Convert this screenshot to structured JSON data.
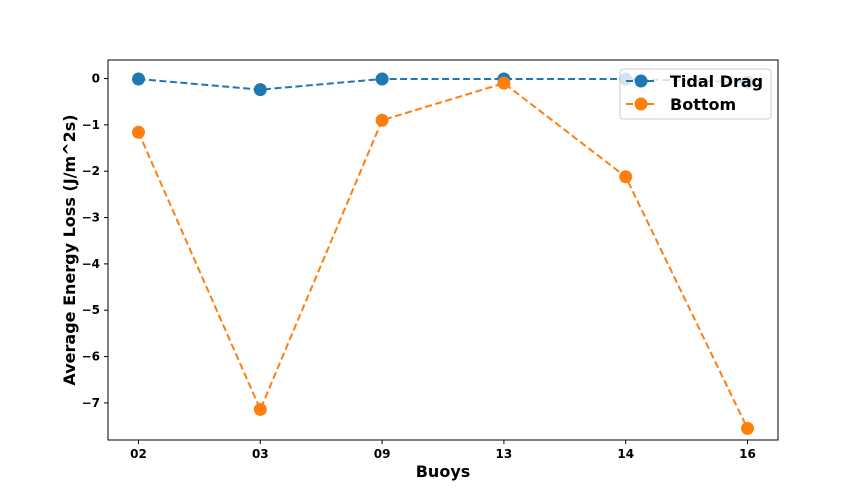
{
  "chart_data": {
    "type": "line",
    "title": "",
    "xlabel": "Buoys",
    "ylabel": "Average Energy Loss (J/m^2s)",
    "categories": [
      "02",
      "03",
      "09",
      "13",
      "14",
      "16"
    ],
    "ylim": [
      -7.8,
      0.4
    ],
    "yticks": [
      0,
      -1,
      -2,
      -3,
      -4,
      -5,
      -6,
      -7
    ],
    "ytick_labels": [
      "0",
      "−1",
      "−2",
      "−3",
      "−4",
      "−5",
      "−6",
      "−7"
    ],
    "grid": false,
    "legend_position": "top-right",
    "series": [
      {
        "name": "Tidal Drag",
        "color": "#1f77b4",
        "line_style": "dashed",
        "marker": "circle",
        "values": [
          -0.01,
          -0.24,
          -0.01,
          -0.01,
          -0.01,
          -0.08
        ]
      },
      {
        "name": "Bottom",
        "color": "#ff7f0e",
        "line_style": "dashed",
        "marker": "circle",
        "values": [
          -1.16,
          -7.14,
          -0.9,
          -0.1,
          -2.12,
          -7.55
        ]
      }
    ]
  }
}
